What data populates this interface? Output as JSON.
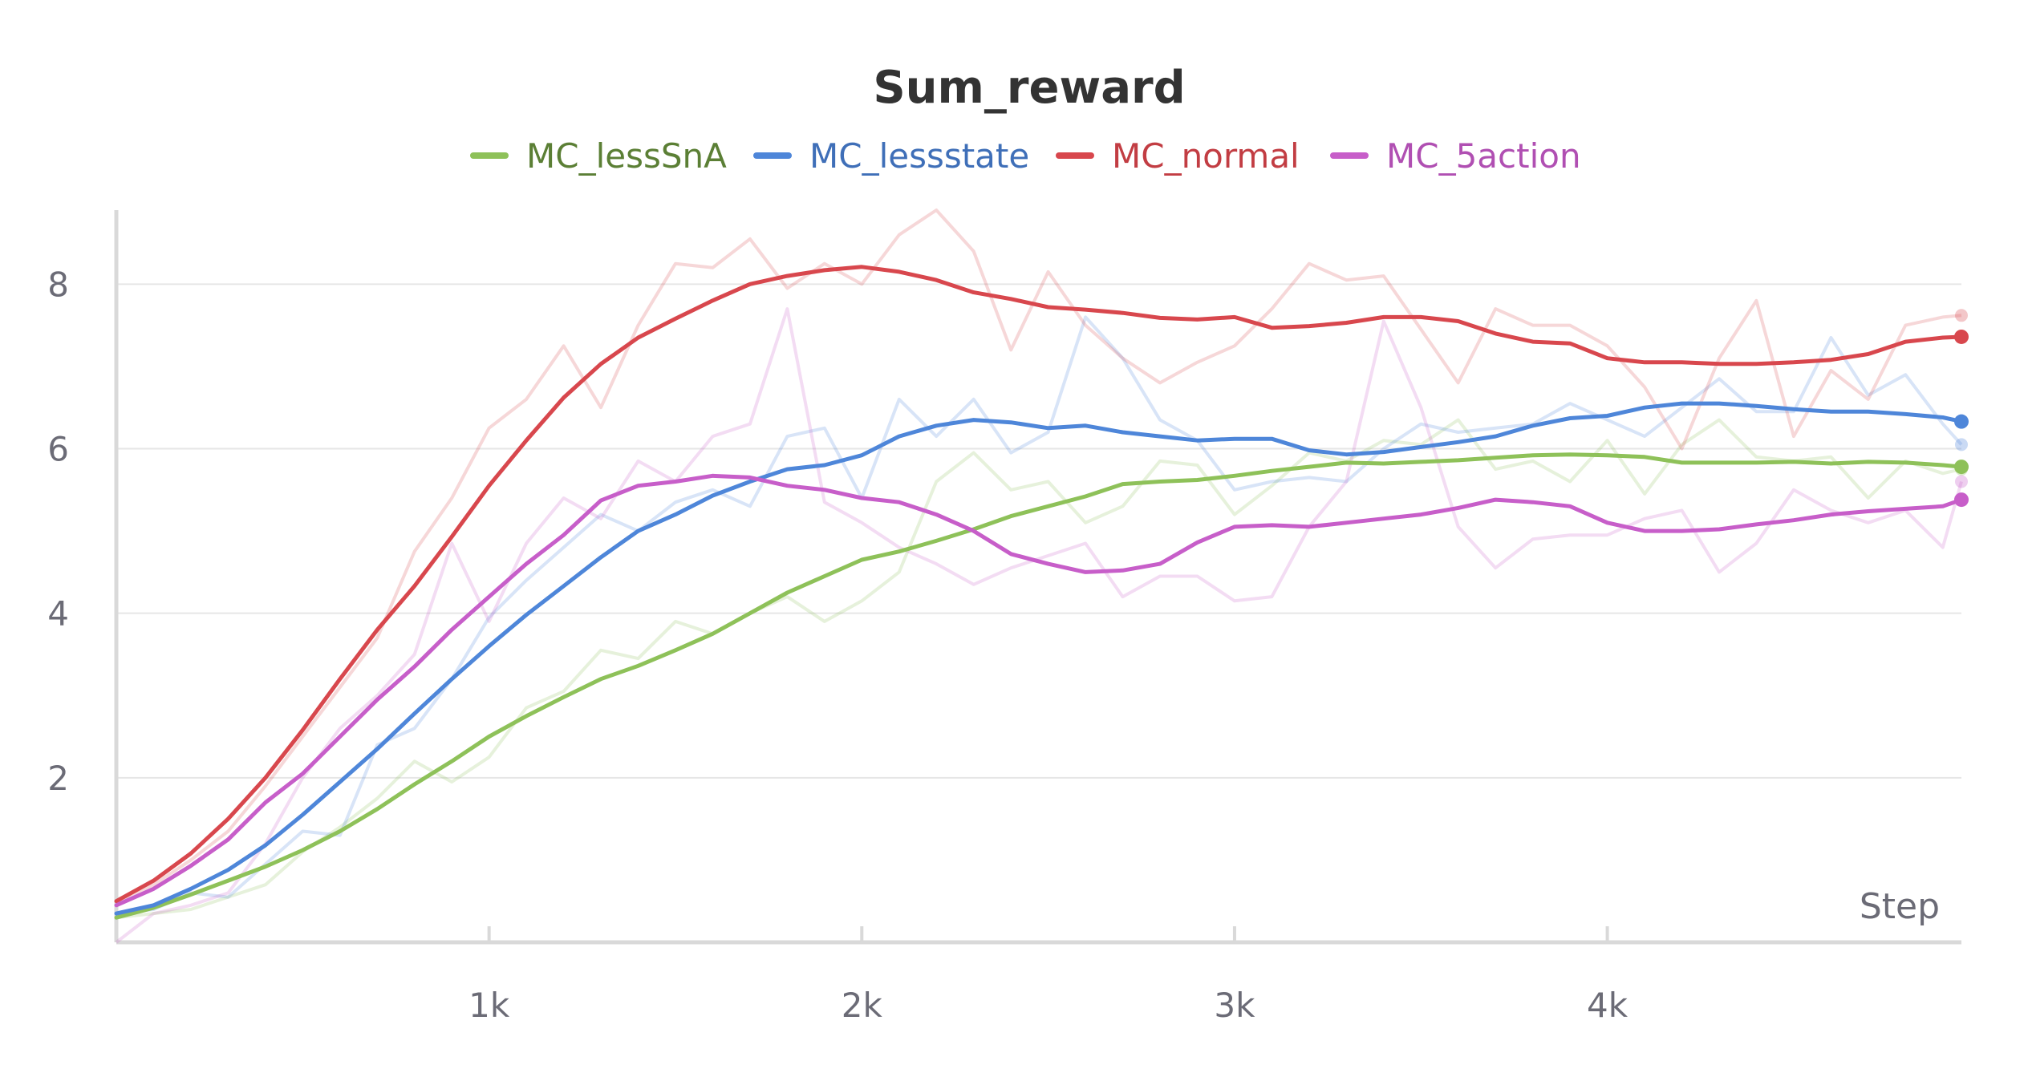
{
  "chart_data": {
    "type": "line",
    "title": "Sum_reward",
    "xlabel": "Step",
    "ylabel": "",
    "xlim": [
      0,
      4950
    ],
    "ylim": [
      0,
      8.9
    ],
    "x_ticks": [
      1000,
      2000,
      3000,
      4000
    ],
    "x_tick_labels": [
      "1k",
      "2k",
      "3k",
      "4k"
    ],
    "y_ticks": [
      2,
      4,
      6,
      8
    ],
    "y_tick_labels": [
      "2",
      "4",
      "6",
      "8"
    ],
    "grid": true,
    "legend_position": "top-center",
    "x": [
      0,
      100,
      200,
      300,
      400,
      500,
      600,
      700,
      800,
      900,
      1000,
      1100,
      1200,
      1300,
      1400,
      1500,
      1600,
      1700,
      1800,
      1900,
      2000,
      2100,
      2200,
      2300,
      2400,
      2500,
      2600,
      2700,
      2800,
      2900,
      3000,
      3100,
      3200,
      3300,
      3400,
      3500,
      3600,
      3700,
      3800,
      3900,
      4000,
      4100,
      4200,
      4300,
      4400,
      4500,
      4600,
      4700,
      4800,
      4900,
      4950
    ],
    "series": [
      {
        "name": "MC_lessSnA",
        "color": "#8ec159",
        "smoothed": [
          0.3,
          0.42,
          0.58,
          0.75,
          0.92,
          1.12,
          1.35,
          1.62,
          1.92,
          2.2,
          2.5,
          2.75,
          2.98,
          3.2,
          3.36,
          3.55,
          3.75,
          4.0,
          4.25,
          4.45,
          4.65,
          4.75,
          4.88,
          5.02,
          5.18,
          5.3,
          5.42,
          5.57,
          5.6,
          5.62,
          5.67,
          5.73,
          5.78,
          5.83,
          5.82,
          5.84,
          5.86,
          5.89,
          5.92,
          5.93,
          5.92,
          5.9,
          5.83,
          5.83,
          5.83,
          5.84,
          5.82,
          5.84,
          5.83,
          5.8,
          5.78
        ],
        "raw": [
          0.3,
          0.35,
          0.4,
          0.55,
          0.7,
          1.1,
          1.4,
          1.75,
          2.2,
          1.95,
          2.25,
          2.85,
          3.05,
          3.55,
          3.45,
          3.9,
          3.75,
          4.0,
          4.2,
          3.9,
          4.15,
          4.5,
          5.6,
          5.95,
          5.5,
          5.6,
          5.1,
          5.3,
          5.85,
          5.8,
          5.2,
          5.55,
          5.95,
          5.85,
          6.1,
          6.05,
          6.35,
          5.75,
          5.85,
          5.6,
          6.1,
          5.45,
          6.05,
          6.35,
          5.9,
          5.85,
          5.9,
          5.4,
          5.85,
          5.7,
          5.75
        ]
      },
      {
        "name": "MC_lessstate",
        "color": "#4e86d9",
        "smoothed": [
          0.35,
          0.45,
          0.65,
          0.88,
          1.18,
          1.55,
          1.95,
          2.35,
          2.78,
          3.2,
          3.6,
          3.98,
          4.33,
          4.68,
          5.0,
          5.2,
          5.43,
          5.6,
          5.75,
          5.8,
          5.92,
          6.15,
          6.28,
          6.35,
          6.32,
          6.25,
          6.28,
          6.2,
          6.15,
          6.1,
          6.12,
          6.12,
          5.98,
          5.93,
          5.96,
          6.02,
          6.08,
          6.15,
          6.28,
          6.37,
          6.4,
          6.5,
          6.55,
          6.55,
          6.52,
          6.48,
          6.45,
          6.45,
          6.42,
          6.38,
          6.33
        ],
        "raw": [
          0.35,
          0.4,
          0.6,
          0.55,
          0.95,
          1.35,
          1.3,
          2.4,
          2.6,
          3.2,
          3.95,
          4.4,
          4.8,
          5.2,
          5.0,
          5.35,
          5.5,
          5.3,
          6.15,
          6.25,
          5.4,
          6.6,
          6.15,
          6.6,
          5.95,
          6.2,
          7.6,
          7.1,
          6.35,
          6.1,
          5.5,
          5.6,
          5.65,
          5.6,
          6.0,
          6.3,
          6.2,
          6.25,
          6.3,
          6.55,
          6.35,
          6.15,
          6.5,
          6.85,
          6.45,
          6.45,
          7.35,
          6.65,
          6.9,
          6.3,
          6.05
        ]
      },
      {
        "name": "MC_normal",
        "color": "#d8474d",
        "smoothed": [
          0.5,
          0.75,
          1.08,
          1.5,
          2.0,
          2.58,
          3.2,
          3.8,
          4.33,
          4.93,
          5.55,
          6.1,
          6.62,
          7.03,
          7.35,
          7.58,
          7.8,
          8.0,
          8.1,
          8.17,
          8.21,
          8.15,
          8.05,
          7.9,
          7.82,
          7.72,
          7.69,
          7.65,
          7.59,
          7.57,
          7.6,
          7.47,
          7.49,
          7.53,
          7.6,
          7.6,
          7.55,
          7.4,
          7.3,
          7.28,
          7.1,
          7.05,
          7.05,
          7.03,
          7.03,
          7.05,
          7.08,
          7.15,
          7.3,
          7.35,
          7.36
        ],
        "raw": [
          0.5,
          0.7,
          1.0,
          1.35,
          1.9,
          2.5,
          3.1,
          3.7,
          4.75,
          5.4,
          6.25,
          6.6,
          7.25,
          6.5,
          7.5,
          8.25,
          8.2,
          8.55,
          7.95,
          8.25,
          8.0,
          8.6,
          8.9,
          8.4,
          7.2,
          8.15,
          7.5,
          7.1,
          6.8,
          7.05,
          7.25,
          7.7,
          8.25,
          8.05,
          8.1,
          7.45,
          6.8,
          7.7,
          7.5,
          7.5,
          7.25,
          6.75,
          6.0,
          7.1,
          7.8,
          6.15,
          6.95,
          6.6,
          7.5,
          7.6,
          7.62
        ]
      },
      {
        "name": "MC_5action",
        "color": "#c75ec9",
        "smoothed": [
          0.45,
          0.65,
          0.93,
          1.25,
          1.7,
          2.05,
          2.5,
          2.95,
          3.35,
          3.8,
          4.2,
          4.6,
          4.95,
          5.37,
          5.55,
          5.6,
          5.67,
          5.65,
          5.55,
          5.5,
          5.4,
          5.35,
          5.2,
          5.0,
          4.72,
          4.6,
          4.5,
          4.52,
          4.6,
          4.86,
          5.05,
          5.07,
          5.05,
          5.1,
          5.15,
          5.2,
          5.28,
          5.38,
          5.35,
          5.3,
          5.1,
          5.0,
          5.0,
          5.02,
          5.08,
          5.13,
          5.2,
          5.24,
          5.27,
          5.3,
          5.38
        ],
        "raw": [
          0.0,
          0.35,
          0.45,
          0.6,
          1.2,
          2.0,
          2.6,
          3.0,
          3.5,
          4.85,
          3.9,
          4.85,
          5.4,
          5.15,
          5.85,
          5.6,
          6.15,
          6.3,
          7.7,
          5.35,
          5.1,
          4.8,
          4.6,
          4.35,
          4.55,
          4.7,
          4.85,
          4.2,
          4.45,
          4.45,
          4.15,
          4.2,
          5.05,
          5.6,
          7.55,
          6.5,
          5.05,
          4.55,
          4.9,
          4.95,
          4.95,
          5.15,
          5.25,
          4.5,
          4.85,
          5.5,
          5.25,
          5.1,
          5.25,
          4.8,
          5.6
        ]
      }
    ]
  }
}
